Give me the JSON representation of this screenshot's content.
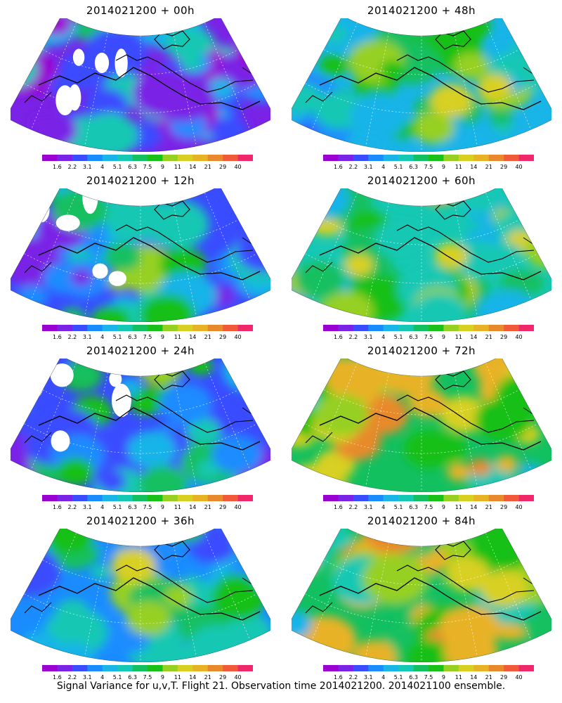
{
  "caption": "Signal Variance for u,v,T. Flight 21. Observation time 2014021200. 2014021100 ensemble.",
  "colorbar": {
    "labels": [
      "1.6",
      "2.2",
      "3.1",
      "4",
      "5.1",
      "6.3",
      "7.5",
      "9",
      "11",
      "14",
      "21",
      "29",
      "40"
    ],
    "colors": [
      "#9a00d2",
      "#7a22e6",
      "#3a4cff",
      "#1a8cff",
      "#19b4e8",
      "#15c8b4",
      "#12c060",
      "#18c018",
      "#96d022",
      "#d8d020",
      "#e8b226",
      "#e88a2c",
      "#f05a3a",
      "#f0286a"
    ]
  },
  "panels": [
    {
      "title": "2014021200 + 00h",
      "level": 0.1
    },
    {
      "title": "2014021200 + 48h",
      "level": 0.55
    },
    {
      "title": "2014021200 + 12h",
      "level": 0.22
    },
    {
      "title": "2014021200 + 60h",
      "level": 0.62
    },
    {
      "title": "2014021200 + 24h",
      "level": 0.3
    },
    {
      "title": "2014021200 + 72h",
      "level": 0.72
    },
    {
      "title": "2014021200 + 36h",
      "level": 0.42
    },
    {
      "title": "2014021200 + 84h",
      "level": 0.74
    }
  ]
}
